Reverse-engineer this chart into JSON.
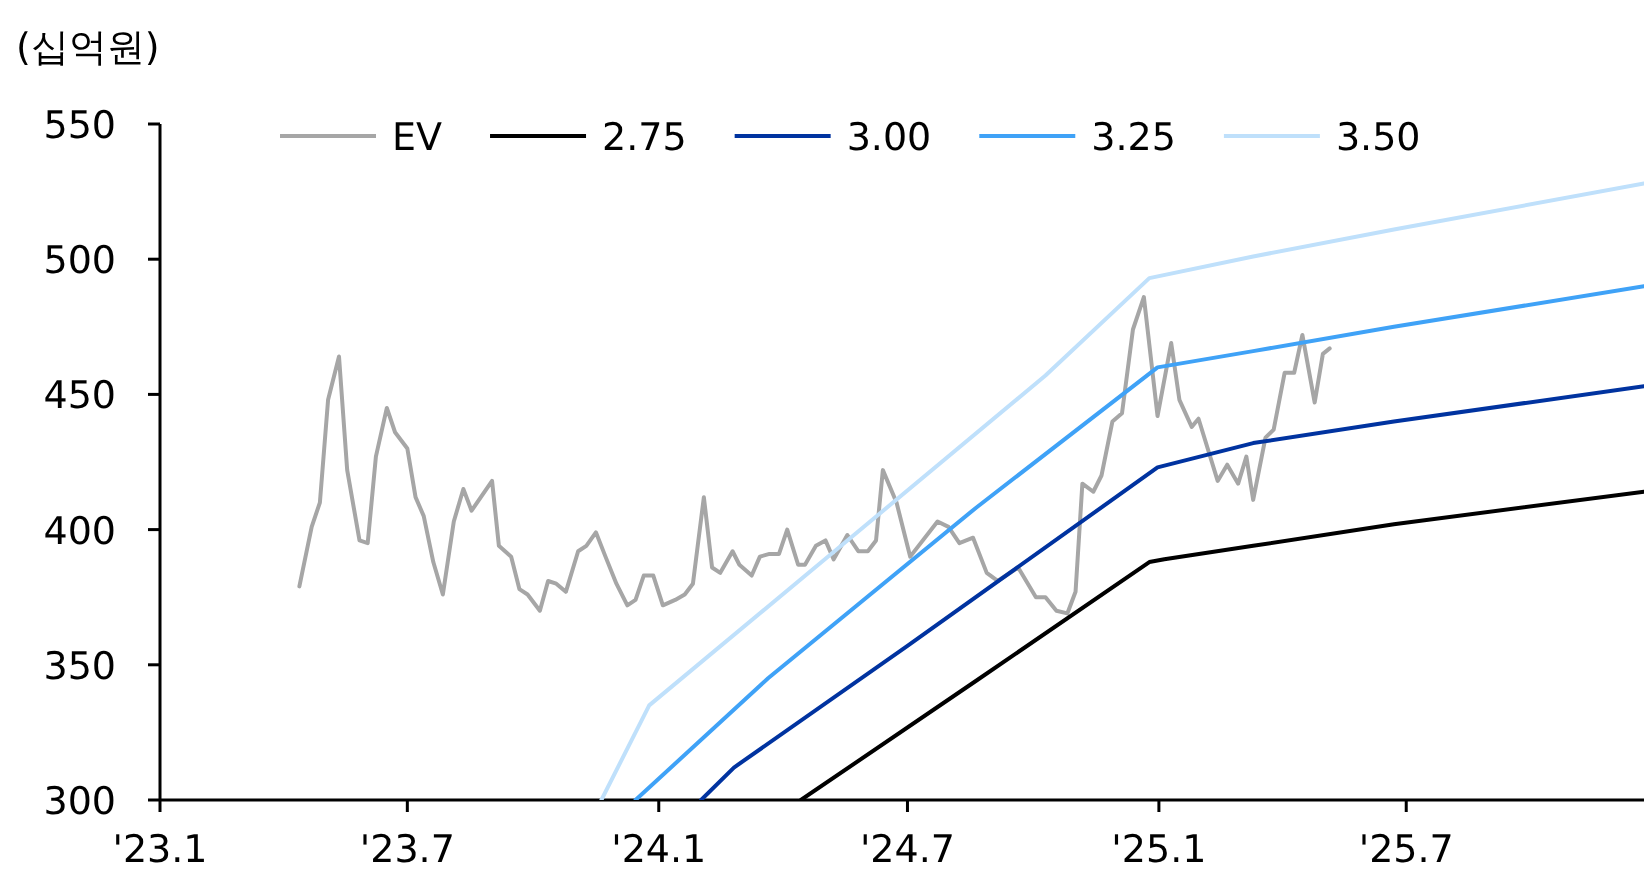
{
  "chart_data": {
    "type": "line",
    "ylabel": "(십억원)",
    "xlim": [
      "2023-01-01",
      "2025-12-22"
    ],
    "ylim": [
      300,
      550
    ],
    "xticks": [
      {
        "value": "2023-01-01",
        "label": "'23.1"
      },
      {
        "value": "2023-07-01",
        "label": "'23.7"
      },
      {
        "value": "2024-01-01",
        "label": "'24.1"
      },
      {
        "value": "2024-07-01",
        "label": "'24.7"
      },
      {
        "value": "2025-01-01",
        "label": "'25.1"
      },
      {
        "value": "2025-07-01",
        "label": "'25.7"
      }
    ],
    "yticks": [
      300,
      350,
      400,
      450,
      500,
      550
    ],
    "legend": "top",
    "series": [
      {
        "name": "EV",
        "color": "#a6a6a6",
        "x": [
          "2023-04-13",
          "2023-04-22",
          "2023-04-28",
          "2023-05-04",
          "2023-05-12",
          "2023-05-18",
          "2023-05-27",
          "2023-06-02",
          "2023-06-08",
          "2023-06-16",
          "2023-06-22",
          "2023-07-01",
          "2023-07-07",
          "2023-07-13",
          "2023-07-20",
          "2023-07-27",
          "2023-08-04",
          "2023-08-11",
          "2023-08-17",
          "2023-09-01",
          "2023-09-06",
          "2023-09-15",
          "2023-09-21",
          "2023-09-27",
          "2023-10-06",
          "2023-10-12",
          "2023-10-18",
          "2023-10-25",
          "2023-11-03",
          "2023-11-09",
          "2023-11-16",
          "2023-11-23",
          "2023-12-01",
          "2023-12-09",
          "2023-12-15",
          "2023-12-21",
          "2023-12-28",
          "2024-01-04",
          "2024-01-13",
          "2024-01-20",
          "2024-01-26",
          "2024-02-03",
          "2024-02-09",
          "2024-02-15",
          "2024-02-24",
          "2024-02-29",
          "2024-03-09",
          "2024-03-15",
          "2024-03-22",
          "2024-03-29",
          "2024-04-04",
          "2024-04-12",
          "2024-04-17",
          "2024-04-25",
          "2024-05-02",
          "2024-05-08",
          "2024-05-18",
          "2024-05-26",
          "2024-06-02",
          "2024-06-08",
          "2024-06-13",
          "2024-06-23",
          "2024-07-03",
          "2024-07-23",
          "2024-07-31",
          "2024-08-08",
          "2024-08-18",
          "2024-08-28",
          "2024-09-05",
          "2024-09-20",
          "2024-10-03",
          "2024-10-10",
          "2024-10-18",
          "2024-10-26",
          "2024-11-01",
          "2024-11-06",
          "2024-11-14",
          "2024-11-20",
          "2024-11-28",
          "2024-12-05",
          "2024-12-13",
          "2024-12-21",
          "2024-12-31",
          "2025-01-10",
          "2025-01-16",
          "2025-01-25",
          "2025-01-30",
          "2025-02-13",
          "2025-02-20",
          "2025-02-28",
          "2025-03-06",
          "2025-03-11",
          "2025-03-20",
          "2025-03-26",
          "2025-04-03",
          "2025-04-10",
          "2025-04-16",
          "2025-04-25",
          "2025-05-01",
          "2025-05-06"
        ],
        "values": [
          379,
          401,
          410,
          448,
          464,
          422,
          396,
          395,
          427,
          445,
          436,
          430,
          412,
          405,
          388,
          376,
          403,
          415,
          407,
          418,
          394,
          390,
          378,
          376,
          370,
          381,
          380,
          377,
          392,
          394,
          399,
          390,
          380,
          372,
          374,
          383,
          383,
          372,
          374,
          376,
          380,
          412,
          386,
          384,
          392,
          387,
          383,
          390,
          391,
          391,
          400,
          387,
          387,
          394,
          396,
          389,
          398,
          392,
          392,
          396,
          422,
          410,
          390,
          403,
          401,
          395,
          397,
          384,
          381,
          386,
          375,
          375,
          370,
          369,
          377,
          417,
          414,
          420,
          440,
          443,
          474,
          486,
          442,
          469,
          448,
          438,
          441,
          418,
          424,
          417,
          427,
          411,
          434,
          437,
          458,
          458,
          472,
          447,
          465,
          467
        ]
      },
      {
        "name": "2.75",
        "color": "#000000",
        "x": [
          "2024-04-14",
          "2024-08-20",
          "2024-12-25",
          "2025-01-05",
          "2025-03-11",
          "2025-06-22",
          "2025-12-22"
        ],
        "values": [
          300,
          344,
          388,
          389,
          394,
          402,
          414
        ]
      },
      {
        "name": "3.00",
        "color": "#0033a0",
        "x": [
          "2024-02-01",
          "2024-02-25",
          "2024-07-01",
          "2024-12-31",
          "2025-03-11",
          "2025-06-22",
          "2025-12-22"
        ],
        "values": [
          300,
          312,
          357,
          423,
          432,
          440,
          453
        ]
      },
      {
        "name": "3.25",
        "color": "#3fa2f7",
        "x": [
          "2023-12-15",
          "2024-03-21",
          "2024-08-20",
          "2024-12-31",
          "2025-03-11",
          "2025-06-22",
          "2025-12-22"
        ],
        "values": [
          300,
          345,
          408,
          460,
          466,
          475,
          490
        ]
      },
      {
        "name": "3.50",
        "color": "#bfe0fb",
        "x": [
          "2023-11-20",
          "2023-12-25",
          "2024-05-11",
          "2024-10-10",
          "2024-12-25",
          "2025-03-11",
          "2025-06-22",
          "2025-12-22"
        ],
        "values": [
          300,
          335,
          393,
          457,
          493,
          501,
          511,
          528
        ]
      }
    ]
  }
}
